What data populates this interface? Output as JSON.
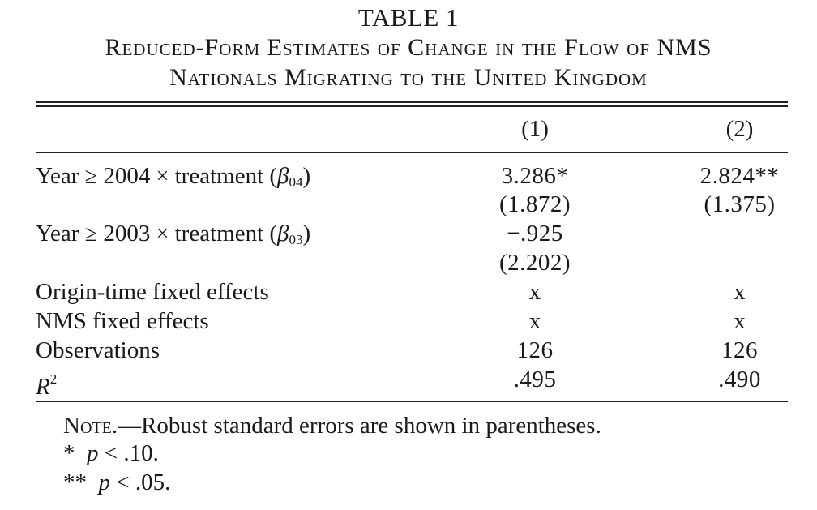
{
  "table": {
    "number": "TABLE 1",
    "title_line1": "Reduced-Form Estimates of Change in the Flow of NMS",
    "title_line2": "Nationals Migrating to the United Kingdom",
    "columns": [
      "(1)",
      "(2)"
    ],
    "rows": [
      {
        "label_pre": "Year ",
        "label_sym": "≥",
        "label_mid": " 2004 ",
        "label_times": "×",
        "label_post": " treatment (",
        "beta": "β",
        "beta_sub": "04",
        "label_end": ")",
        "col1": "3.286*",
        "col2": "2.824**"
      },
      {
        "se1": "(1.872)",
        "se2": "(1.375)"
      },
      {
        "label_pre": "Year ",
        "label_sym": "≥",
        "label_mid": " 2003 ",
        "label_times": "×",
        "label_post": " treatment (",
        "beta": "β",
        "beta_sub": "03",
        "label_end": ")",
        "col1": "−.925",
        "col2": ""
      },
      {
        "se1": "(2.202)",
        "se2": ""
      },
      {
        "label": "Origin-time fixed effects",
        "col1": "x",
        "col2": "x"
      },
      {
        "label": "NMS fixed effects",
        "col1": "x",
        "col2": "x"
      },
      {
        "label": "Observations",
        "col1": "126",
        "col2": "126"
      },
      {
        "label_r": "R",
        "label_sup": "2",
        "col1": ".495",
        "col2": ".490"
      }
    ],
    "notes": {
      "head": "Note.",
      "text": "—Robust standard errors are shown in parentheses.",
      "sig1_mark": "*",
      "sig1_p": "p",
      "sig1_text": " < .10.",
      "sig2_mark": "**",
      "sig2_p": "p",
      "sig2_text": " < .05."
    }
  }
}
